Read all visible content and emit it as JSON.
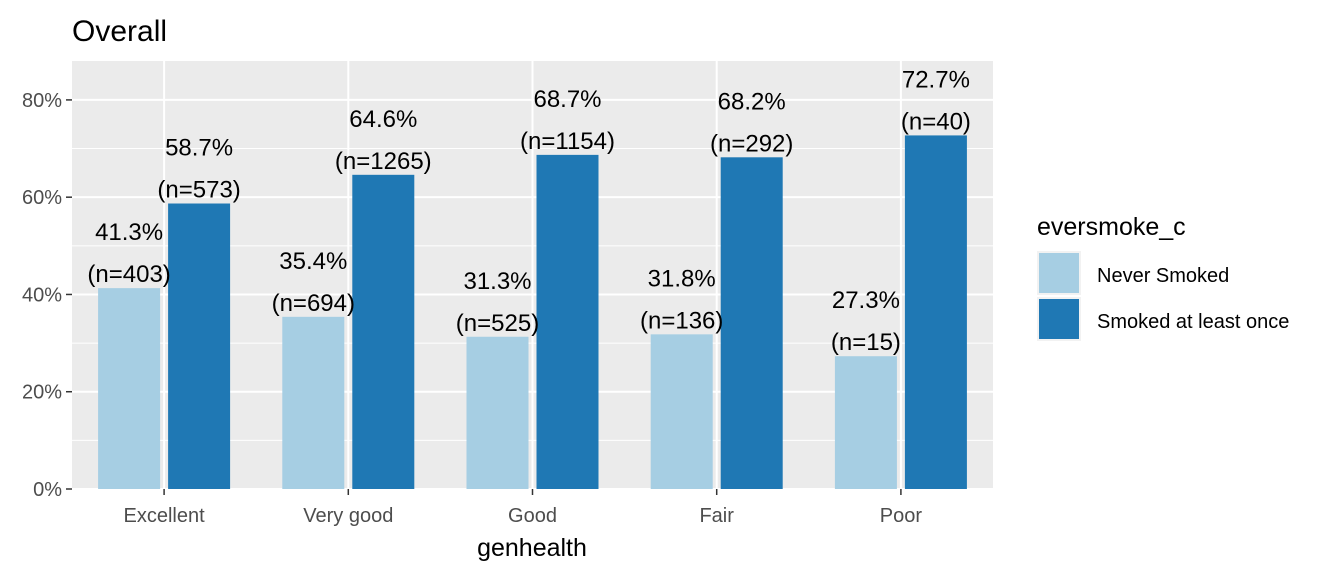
{
  "chart_data": {
    "type": "bar",
    "title": "Overall",
    "xlabel": "genhealth",
    "ylabel": "",
    "categories": [
      "Excellent",
      "Very good",
      "Good",
      "Fair",
      "Poor"
    ],
    "ylim": [
      0,
      0.88
    ],
    "yticks": [
      0,
      0.2,
      0.4,
      0.6,
      0.8
    ],
    "ytick_labels": [
      "0%",
      "20%",
      "40%",
      "60%",
      "80%"
    ],
    "grid": true,
    "legend": {
      "title": "eversmoke_c",
      "position": "right"
    },
    "series": [
      {
        "name": "Never Smoked",
        "color": "#a6cee3",
        "values": [
          0.413,
          0.354,
          0.313,
          0.318,
          0.273
        ],
        "pct_labels": [
          "41.3%",
          "35.4%",
          "31.3%",
          "31.8%",
          "27.3%"
        ],
        "n_labels": [
          "(n=403)",
          "(n=694)",
          "(n=525)",
          "(n=136)",
          "(n=15)"
        ]
      },
      {
        "name": "Smoked at least once",
        "color": "#1f78b4",
        "values": [
          0.587,
          0.646,
          0.687,
          0.682,
          0.727
        ],
        "pct_labels": [
          "58.7%",
          "64.6%",
          "68.7%",
          "68.2%",
          "72.7%"
        ],
        "n_labels": [
          "(n=573)",
          "(n=1265)",
          "(n=1154)",
          "(n=292)",
          "(n=40)"
        ]
      }
    ]
  }
}
